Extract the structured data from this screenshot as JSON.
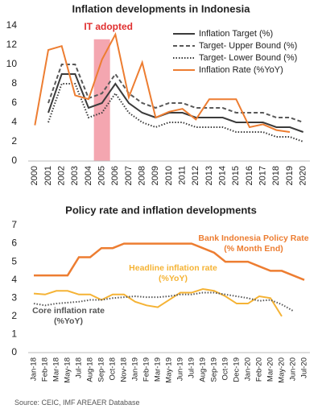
{
  "chart_data": [
    {
      "type": "line",
      "title": "Inflation developments in Indonesia",
      "categories": [
        "2000",
        "2001",
        "2002",
        "2003",
        "2004",
        "2005",
        "2006",
        "2007",
        "2008",
        "2009",
        "2010",
        "2011",
        "2012",
        "2013",
        "2014",
        "2015",
        "2016",
        "2017",
        "2018",
        "2019",
        "2020"
      ],
      "series": [
        {
          "name": "Inflation Target (%)",
          "color": "#3b3b3b",
          "dash": "solid",
          "values": [
            null,
            5,
            9,
            9,
            5.5,
            6,
            8,
            6,
            5,
            4.5,
            5,
            5,
            4.5,
            4.5,
            4.5,
            4,
            4,
            4,
            3.5,
            3.5,
            3
          ]
        },
        {
          "name": "Target- Upper Bound (%)",
          "color": "#595959",
          "dash": "dashed",
          "values": [
            null,
            6,
            10,
            10,
            6.5,
            7,
            9,
            7,
            6,
            5.5,
            6,
            6,
            5.5,
            5.5,
            5.5,
            5,
            5,
            5,
            4.5,
            4.5,
            4
          ]
        },
        {
          "name": "Target- Lower Bound (%)",
          "color": "#3b3b3b",
          "dash": "dotted",
          "values": [
            null,
            4,
            8,
            8,
            4.5,
            5,
            7,
            5,
            4,
            3.5,
            4,
            4,
            3.5,
            3.5,
            3.5,
            3,
            3,
            3,
            2.5,
            2.5,
            2
          ]
        },
        {
          "name": "Inflation Rate (%YoY)",
          "color": "#ed7d31",
          "dash": "solid",
          "values": [
            3.7,
            11.5,
            11.9,
            6.8,
            6.4,
            10.5,
            13.1,
            6.6,
            10.2,
            4.5,
            5.1,
            5.4,
            4.3,
            6.4,
            6.4,
            6.4,
            3.5,
            3.8,
            3.2,
            3.0,
            null
          ]
        }
      ],
      "annotation": {
        "text": "IT adopted",
        "category": "2005",
        "color": "#e03030",
        "band_color": "#f4a6b0"
      },
      "ylim": [
        0,
        14
      ],
      "yticks": [
        0,
        2,
        4,
        6,
        8,
        10,
        12,
        14
      ],
      "legend": "top-right"
    },
    {
      "type": "line",
      "title": "Policy rate and inflation developments",
      "categories": [
        "Jan-18",
        "Feb-18",
        "Mar-18",
        "May-18",
        "Jul-18",
        "Aug-18",
        "Sep-18",
        "Oct-18",
        "Nov-18",
        "Jan-19",
        "Feb-19",
        "Mar-19",
        "May-19",
        "Jun-19",
        "Jul-19",
        "Aug-19",
        "Sep-19",
        "Oct-19",
        "Dec-19",
        "Jan-20",
        "Feb-20",
        "Mar-20",
        "May-20",
        "Jun-20",
        "Jul-20"
      ],
      "series": [
        {
          "name": "Bank Indonesia Policy Rate (% Month End)",
          "color": "#ed7d31",
          "dash": "solid",
          "values": [
            4.25,
            4.25,
            4.25,
            4.25,
            5.25,
            5.25,
            5.75,
            5.75,
            6,
            6,
            6,
            6,
            6,
            6,
            6,
            5.75,
            5.5,
            5,
            5,
            5,
            4.75,
            4.5,
            4.5,
            4.25,
            4
          ]
        },
        {
          "name": "Headline inflation rate (%YoY)",
          "color": "#f5b335",
          "dash": "solid",
          "values": [
            3.25,
            3.2,
            3.4,
            3.4,
            3.2,
            3.2,
            2.9,
            3.2,
            3.2,
            2.8,
            2.6,
            2.5,
            2.9,
            3.3,
            3.3,
            3.5,
            3.4,
            3.1,
            2.7,
            2.7,
            3.1,
            3.0,
            2.0,
            null,
            null
          ]
        },
        {
          "name": "Core inflation rate (%YoY)",
          "color": "#595959",
          "dash": "dotted",
          "values": [
            2.7,
            2.6,
            2.7,
            2.75,
            2.8,
            2.9,
            2.9,
            3.0,
            3.05,
            3.1,
            3.05,
            3.05,
            3.1,
            3.2,
            3.2,
            3.3,
            3.3,
            3.2,
            3.1,
            3.0,
            2.85,
            2.9,
            2.65,
            2.3,
            null
          ]
        }
      ],
      "ylim": [
        0,
        7
      ],
      "yticks": [
        0,
        1,
        2,
        3,
        4,
        5,
        6,
        7
      ],
      "legend": "inline"
    }
  ],
  "source": "Source: CEIC, IMF AREAER Database"
}
